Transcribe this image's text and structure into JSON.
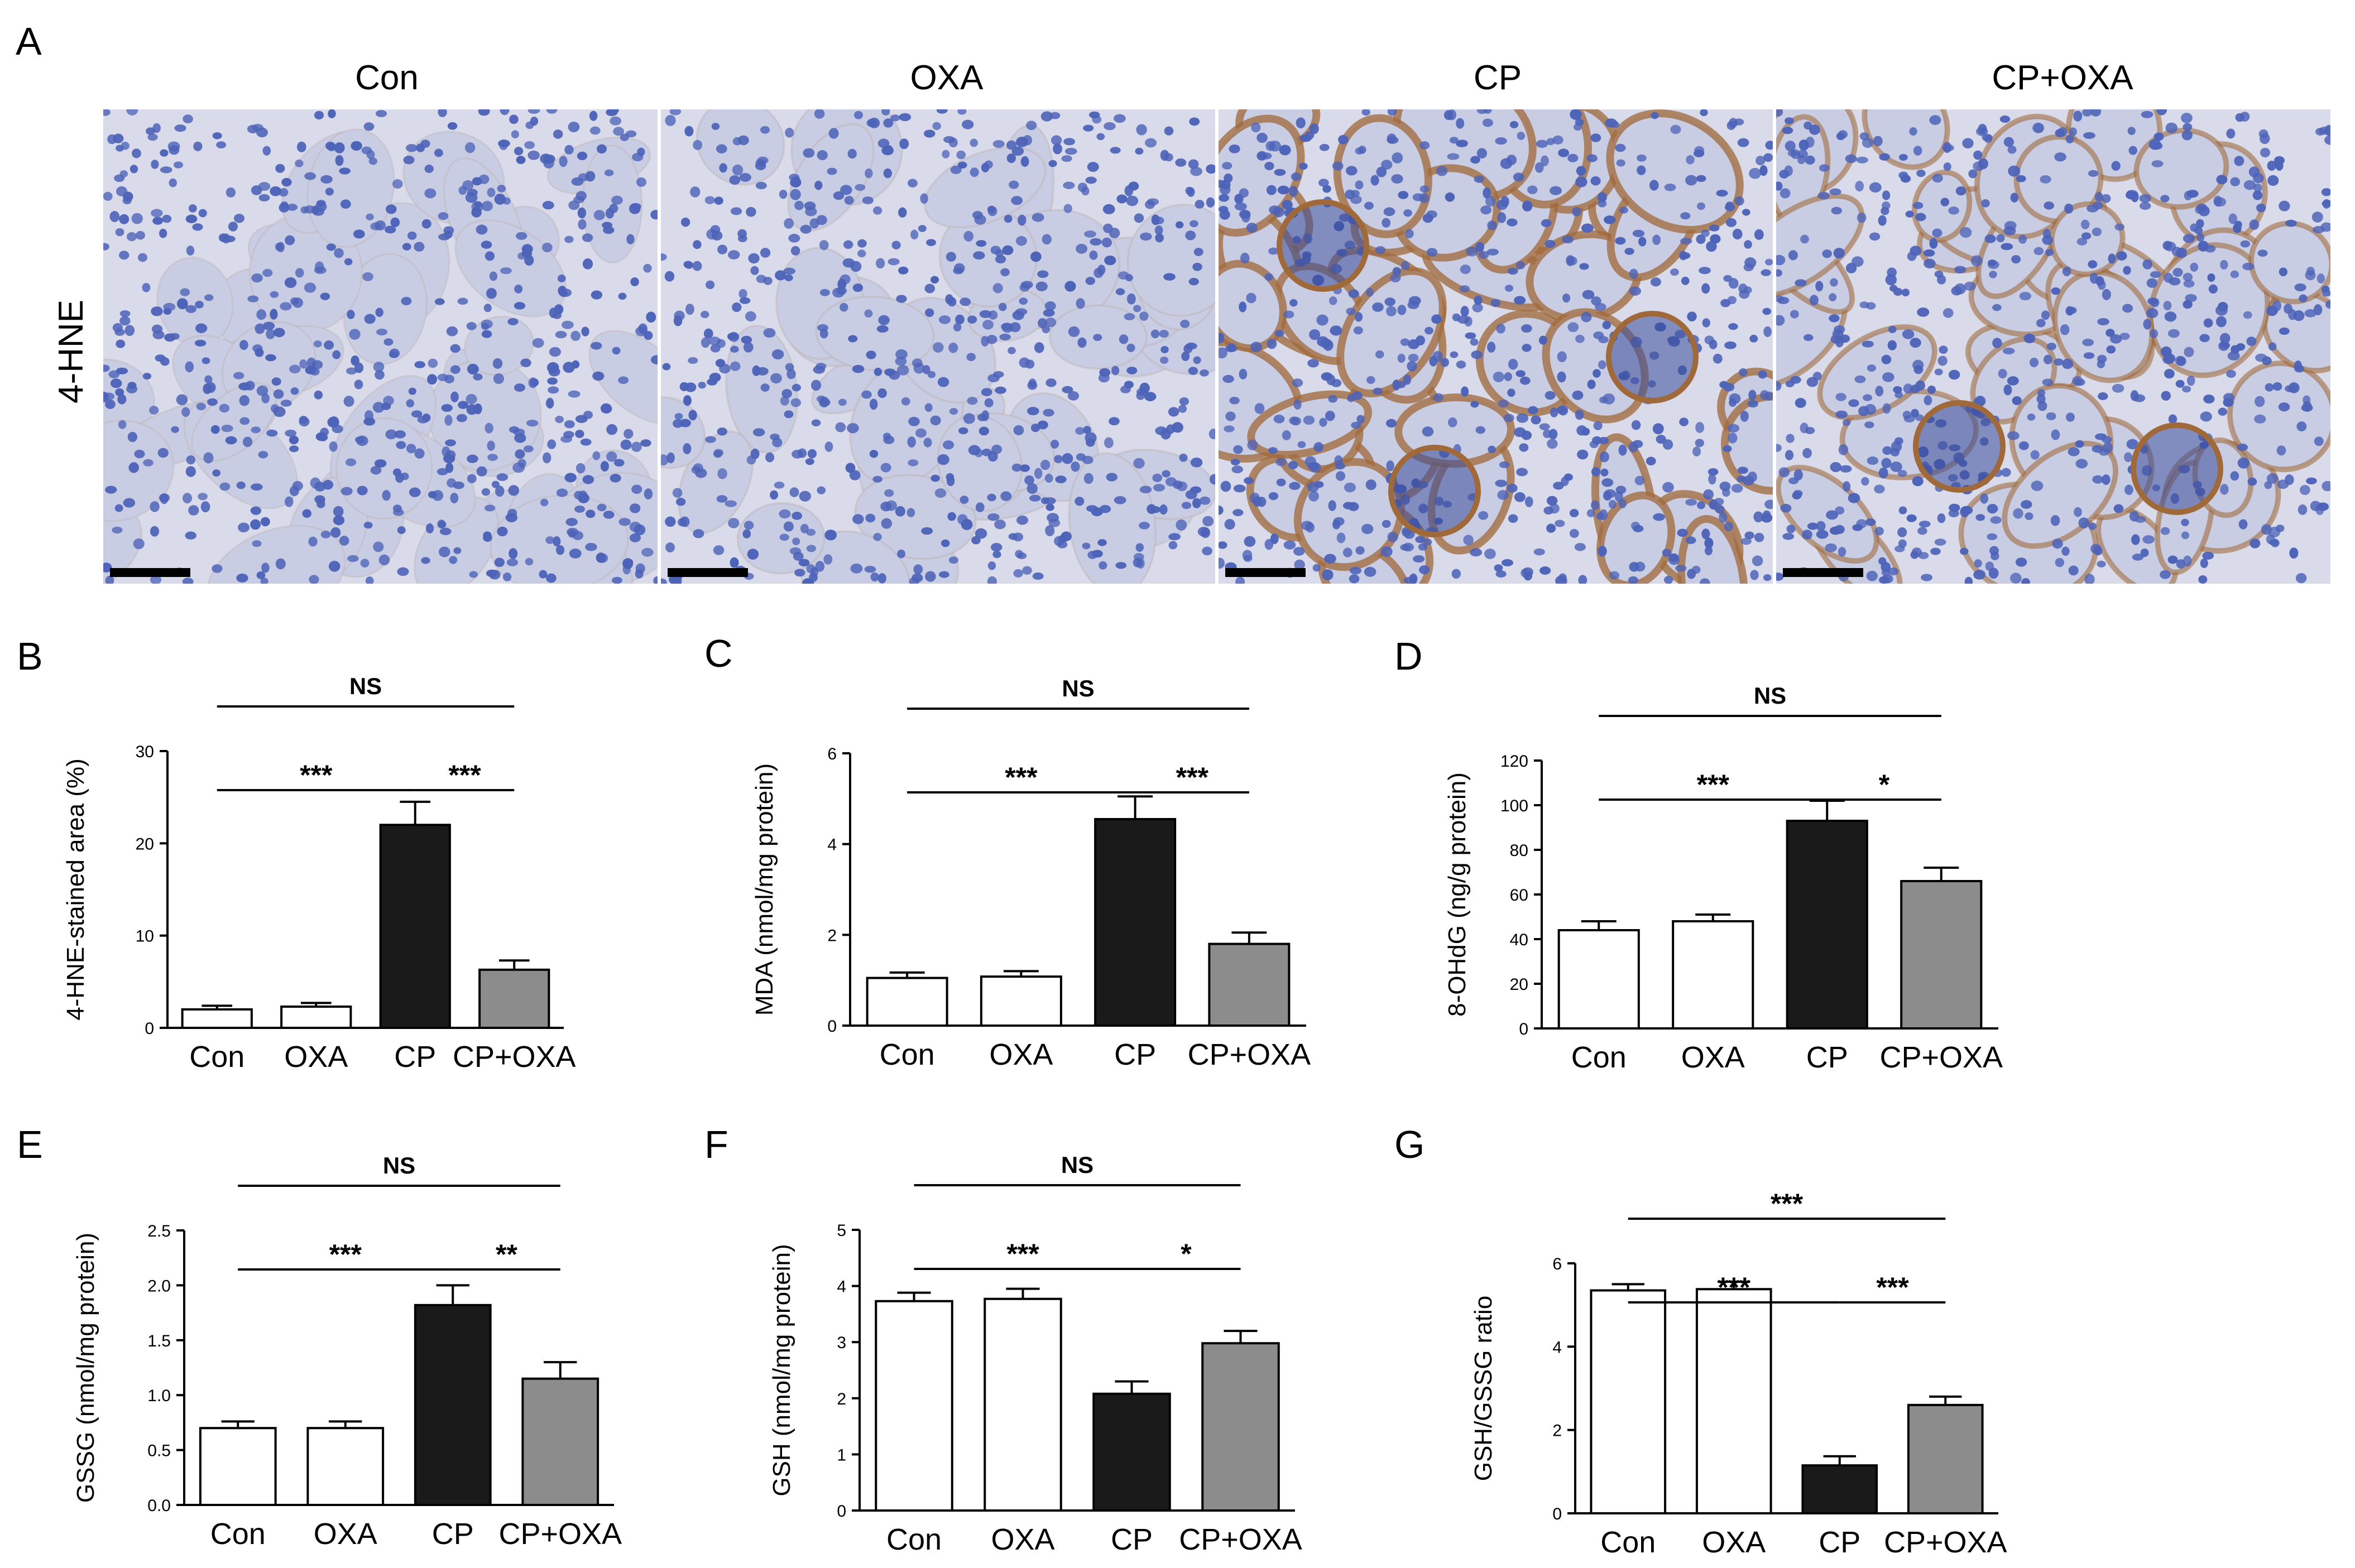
{
  "figure": {
    "panel_a": {
      "letter": "A",
      "row_label": "4-HNE",
      "columns": [
        "Con",
        "OXA",
        "CP",
        "CP+OXA"
      ],
      "micrograph_colors": {
        "background": "#d9dbea",
        "tubule": "#c9cde3",
        "nucleus": "#4d63b8",
        "stain": "#a0693a"
      },
      "staining_intensity": [
        0.08,
        0.12,
        0.85,
        0.55
      ]
    }
  },
  "chart_data": [
    {
      "panel": "B",
      "type": "bar",
      "categories": [
        "Con",
        "OXA",
        "CP",
        "CP+OXA"
      ],
      "values": [
        2.0,
        2.3,
        22.0,
        6.3
      ],
      "errors": [
        0.4,
        0.4,
        2.5,
        1.0
      ],
      "colors": [
        "#ffffff",
        "#ffffff",
        "#1a1a1a",
        "#8c8c8c"
      ],
      "ylabel": "4-HNE-stained area (%)",
      "ylim": [
        0,
        30
      ],
      "yticks": [
        "0",
        "10",
        "20",
        "30"
      ],
      "comparisons": [
        {
          "from": 0,
          "to": 3,
          "label": "NS",
          "level": 2
        },
        {
          "from": 0,
          "to": 2,
          "label": "***",
          "level": 1
        },
        {
          "from": 2,
          "to": 3,
          "label": "***",
          "level": 1
        }
      ]
    },
    {
      "panel": "C",
      "type": "bar",
      "categories": [
        "Con",
        "OXA",
        "CP",
        "CP+OXA"
      ],
      "values": [
        1.05,
        1.08,
        4.55,
        1.8
      ],
      "errors": [
        0.12,
        0.12,
        0.5,
        0.25
      ],
      "colors": [
        "#ffffff",
        "#ffffff",
        "#1a1a1a",
        "#8c8c8c"
      ],
      "ylabel": "MDA  (nmol/mg protein)",
      "ylim": [
        0,
        6
      ],
      "yticks": [
        "0",
        "2",
        "4",
        "6"
      ],
      "comparisons": [
        {
          "from": 0,
          "to": 3,
          "label": "NS",
          "level": 2
        },
        {
          "from": 0,
          "to": 2,
          "label": "***",
          "level": 1
        },
        {
          "from": 2,
          "to": 3,
          "label": "***",
          "level": 1
        }
      ]
    },
    {
      "panel": "D",
      "type": "bar",
      "categories": [
        "Con",
        "OXA",
        "CP",
        "CP+OXA"
      ],
      "values": [
        44,
        48,
        93,
        66
      ],
      "errors": [
        4,
        3,
        9,
        6
      ],
      "colors": [
        "#ffffff",
        "#ffffff",
        "#1a1a1a",
        "#8c8c8c"
      ],
      "ylabel": "8-OHdG  (ng/g protein)",
      "ylim": [
        0,
        120
      ],
      "yticks": [
        "0",
        "20",
        "40",
        "60",
        "80",
        "100",
        "120"
      ],
      "comparisons": [
        {
          "from": 0,
          "to": 3,
          "label": "NS",
          "level": 2
        },
        {
          "from": 0,
          "to": 2,
          "label": "***",
          "level": 1
        },
        {
          "from": 2,
          "to": 3,
          "label": "*",
          "level": 1
        }
      ]
    },
    {
      "panel": "E",
      "type": "bar",
      "categories": [
        "Con",
        "OXA",
        "CP",
        "CP+OXA"
      ],
      "values": [
        0.7,
        0.7,
        1.82,
        1.15
      ],
      "errors": [
        0.06,
        0.06,
        0.18,
        0.15
      ],
      "colors": [
        "#ffffff",
        "#ffffff",
        "#1a1a1a",
        "#8c8c8c"
      ],
      "ylabel": "GSSG (nmol/mg protein)",
      "ylim": [
        0,
        2.5
      ],
      "yticks": [
        "0.0",
        "0.5",
        "1.0",
        "1.5",
        "2.0",
        "2.5"
      ],
      "comparisons": [
        {
          "from": 0,
          "to": 3,
          "label": "NS",
          "level": 2
        },
        {
          "from": 0,
          "to": 2,
          "label": "***",
          "level": 1
        },
        {
          "from": 2,
          "to": 3,
          "label": "**",
          "level": 1
        }
      ]
    },
    {
      "panel": "F",
      "type": "bar",
      "categories": [
        "Con",
        "OXA",
        "CP",
        "CP+OXA"
      ],
      "values": [
        3.73,
        3.77,
        2.08,
        2.98
      ],
      "errors": [
        0.15,
        0.18,
        0.22,
        0.22
      ],
      "colors": [
        "#ffffff",
        "#ffffff",
        "#1a1a1a",
        "#8c8c8c"
      ],
      "ylabel": "GSH (nmol/mg protein)",
      "ylim": [
        0,
        5
      ],
      "yticks": [
        "0",
        "1",
        "2",
        "3",
        "4",
        "5"
      ],
      "comparisons": [
        {
          "from": 0,
          "to": 3,
          "label": "NS",
          "level": 2
        },
        {
          "from": 0,
          "to": 2,
          "label": "***",
          "level": 1
        },
        {
          "from": 2,
          "to": 3,
          "label": "*",
          "level": 1
        }
      ]
    },
    {
      "panel": "G",
      "type": "bar",
      "categories": [
        "Con",
        "OXA",
        "CP",
        "CP+OXA"
      ],
      "values": [
        5.35,
        5.38,
        1.15,
        2.6
      ],
      "errors": [
        0.15,
        0.18,
        0.22,
        0.2
      ],
      "colors": [
        "#ffffff",
        "#ffffff",
        "#1a1a1a",
        "#8c8c8c"
      ],
      "ylabel": "GSH/GSSG ratio",
      "ylim": [
        0,
        6
      ],
      "yticks": [
        "0",
        "2",
        "4",
        "6"
      ],
      "comparisons": [
        {
          "from": 0,
          "to": 3,
          "label": "***",
          "level": 2
        },
        {
          "from": 0,
          "to": 2,
          "label": "***",
          "level": 1
        },
        {
          "from": 2,
          "to": 3,
          "label": "***",
          "level": 1
        }
      ]
    }
  ]
}
